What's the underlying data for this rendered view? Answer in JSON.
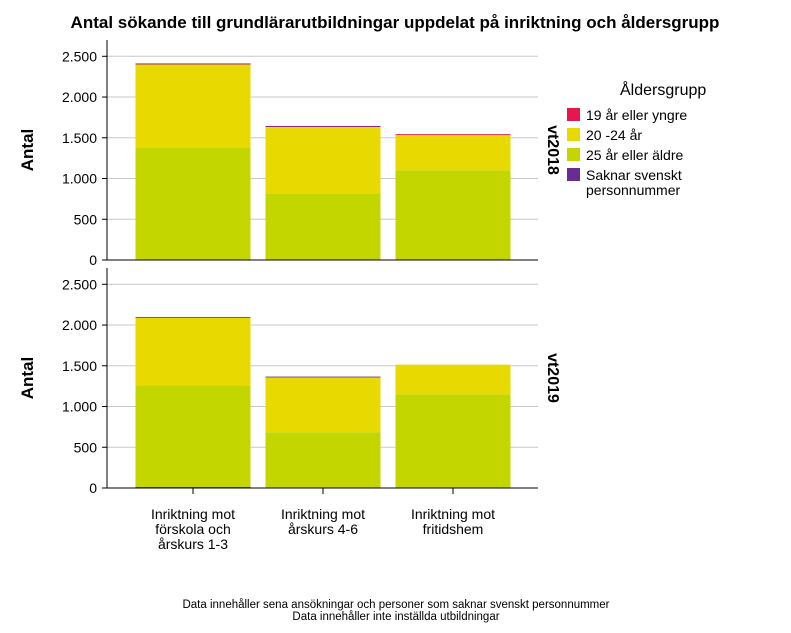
{
  "chart_data": {
    "type": "bar",
    "stacked": true,
    "title": "Antal sökande till grundlärarutbildningar uppdelat på inriktning och åldersgrupp",
    "ylabel": "Antal",
    "ylim": [
      0,
      2700
    ],
    "yticks": [
      0,
      500,
      1000,
      1500,
      2000,
      2500
    ],
    "ytick_labels": [
      "0",
      "500",
      "1.000",
      "1.500",
      "2.000",
      "2.500"
    ],
    "grid": true,
    "categories": [
      [
        "Inriktning mot",
        "förskola och",
        "årskurs 1-3"
      ],
      [
        "Inriktning mot",
        "årskurs 4-6"
      ],
      [
        "Inriktning mot",
        "fritidshem"
      ]
    ],
    "legend": {
      "title": "Åldersgrupp",
      "placement": "right",
      "items": [
        {
          "lines": [
            "19 år eller yngre"
          ],
          "color": "#e5174f"
        },
        {
          "lines": [
            "20 -24 år"
          ],
          "color": "#e8da00"
        },
        {
          "lines": [
            "25 år eller äldre"
          ],
          "color": "#c4d600"
        },
        {
          "lines": [
            "Saknar svenskt",
            "personnummer"
          ],
          "color": "#6a2c91"
        }
      ]
    },
    "panels": [
      {
        "label": "vt2018",
        "series": [
          {
            "name": "25 år eller äldre",
            "color": "#c4d600",
            "values": [
              1375,
              810,
              1100
            ]
          },
          {
            "name": "20 -24 år",
            "color": "#e8da00",
            "values": [
              1025,
              825,
              440
            ]
          },
          {
            "name": "19 år eller yngre",
            "color": "#e5174f",
            "values": [
              10,
              8,
              5
            ]
          },
          {
            "name": "Saknar svenskt personnummer",
            "color": "#6a2c91",
            "values": [
              2,
              2,
              0
            ]
          }
        ]
      },
      {
        "label": "vt2019",
        "series": [
          {
            "name": "19 år eller yngre",
            "color": "#e5174f",
            "values": [
              12,
              5,
              4
            ]
          },
          {
            "name": "25 år eller äldre",
            "color": "#c4d600",
            "values": [
              1250,
              680,
              1145
            ]
          },
          {
            "name": "20 -24 år",
            "color": "#e8da00",
            "values": [
              835,
              680,
              365
            ]
          },
          {
            "name": "Saknar svenskt personnummer",
            "color": "#6a2c91",
            "values": [
              2,
              2,
              0
            ]
          }
        ]
      }
    ],
    "footnotes": [
      "Data innehåller sena ansökningar och personer som saknar svenskt personnummer",
      "Data innehåller inte inställda utbildningar"
    ]
  }
}
